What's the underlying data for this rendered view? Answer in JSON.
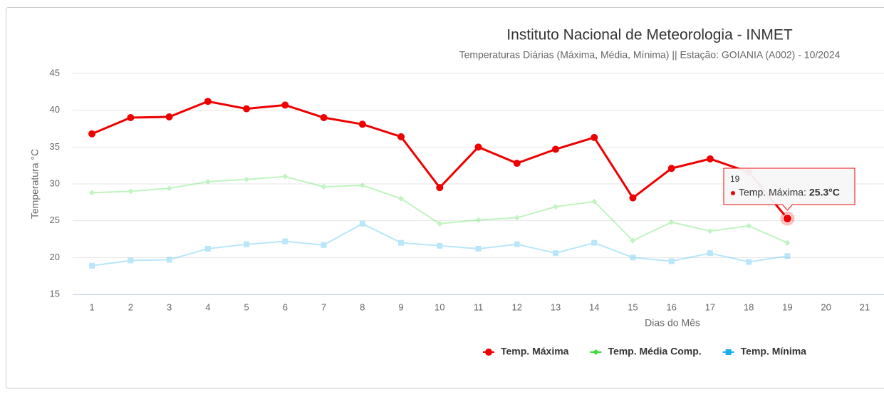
{
  "chart_data": {
    "type": "line",
    "title": "Instituto Nacional de Meteorologia - INMET",
    "subtitle": "Temperaturas Diárias (Máxima, Média, Mínima) || Estação: GOIANIA (A002) - 10/2024",
    "y_label": "Temperatura °C",
    "x_label": "Dias do Mês",
    "x": [
      1,
      2,
      3,
      4,
      5,
      6,
      7,
      8,
      9,
      10,
      11,
      12,
      13,
      14,
      15,
      16,
      17,
      18,
      19
    ],
    "xlim": [
      0.5,
      21.5
    ],
    "xticks": [
      1,
      2,
      3,
      4,
      5,
      6,
      7,
      8,
      9,
      10,
      11,
      12,
      13,
      14,
      15,
      16,
      17,
      18,
      19,
      20,
      21
    ],
    "ylim": [
      15,
      45
    ],
    "yticks": [
      15,
      20,
      25,
      30,
      35,
      40,
      45
    ],
    "grid": true,
    "legend": "bottom",
    "series": [
      {
        "name": "Temp. Máxima",
        "color": "#ee0000",
        "marker": "circle",
        "values": [
          36.8,
          39.0,
          39.1,
          41.2,
          40.2,
          40.7,
          39.0,
          38.1,
          36.4,
          29.5,
          35.0,
          32.8,
          34.7,
          36.3,
          28.1,
          32.1,
          33.4,
          31.6,
          25.3
        ]
      },
      {
        "name": "Temp. Média Comp.",
        "color": "#33dd33",
        "marker": "diamond",
        "values": [
          28.8,
          29.0,
          29.4,
          30.3,
          30.6,
          31.0,
          29.6,
          29.8,
          28.0,
          24.6,
          25.1,
          25.4,
          26.9,
          27.6,
          22.3,
          24.8,
          23.6,
          24.3,
          22.0
        ]
      },
      {
        "name": "Temp. Mínima",
        "color": "#1ab0ee",
        "marker": "square",
        "values": [
          18.9,
          19.6,
          19.7,
          21.2,
          21.8,
          22.2,
          21.7,
          24.6,
          22.0,
          21.6,
          21.2,
          21.8,
          20.6,
          22.0,
          20.0,
          19.5,
          20.6,
          19.4,
          20.2
        ]
      }
    ],
    "tooltip": {
      "label": "Temp. Máxima:",
      "value": "25.3°C"
    }
  }
}
